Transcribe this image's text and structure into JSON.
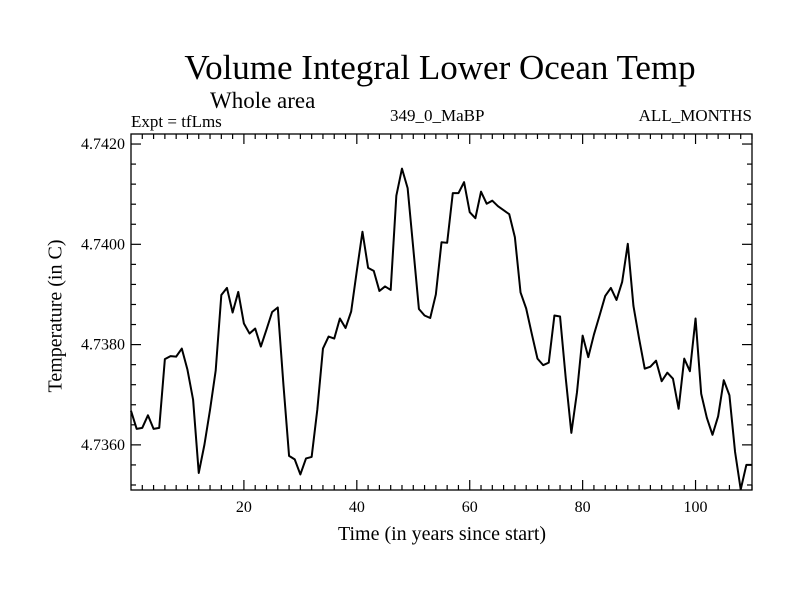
{
  "chart_data": {
    "type": "line",
    "title": "Volume Integral Lower Ocean Temp",
    "subtitle": "Whole area",
    "expt_label": "Expt = tfLms",
    "period_label": "349_0_MaBP",
    "months_label": "ALL_MONTHS",
    "xlabel": "Time (in years since start)",
    "ylabel": "Temperature (in C)",
    "xlim": [
      0,
      110
    ],
    "ylim": [
      4.7351,
      4.7422
    ],
    "x_ticks": [
      20,
      40,
      60,
      80,
      100
    ],
    "y_ticks": [
      "4.7360",
      "4.7380",
      "4.7400",
      "4.7420"
    ],
    "grid": false,
    "series": [
      {
        "name": "Volume integral lower ocean temperature",
        "x": [
          0,
          1,
          2,
          3,
          4,
          5,
          6,
          7,
          8,
          9,
          10,
          11,
          12,
          13,
          14,
          15,
          16,
          17,
          18,
          19,
          20,
          21,
          22,
          23,
          24,
          25,
          26,
          27,
          28,
          29,
          30,
          31,
          32,
          33,
          34,
          35,
          36,
          37,
          38,
          39,
          40,
          41,
          42,
          43,
          44,
          45,
          46,
          47,
          48,
          49,
          50,
          51,
          52,
          53,
          54,
          55,
          56,
          57,
          58,
          59,
          60,
          61,
          62,
          63,
          64,
          65,
          66,
          67,
          68,
          69,
          70,
          71,
          72,
          73,
          74,
          75,
          76,
          77,
          78,
          79,
          80,
          81,
          82,
          83,
          84,
          85,
          86,
          87,
          88,
          89,
          90,
          91,
          92,
          93,
          94,
          95,
          96,
          97,
          98,
          99,
          100,
          101,
          102,
          103,
          104,
          105,
          106,
          107,
          108,
          109,
          110
        ],
        "values": [
          4.73668,
          4.73632,
          4.73634,
          4.73659,
          4.73632,
          4.73634,
          4.73771,
          4.73777,
          4.73776,
          4.73792,
          4.7375,
          4.7369,
          4.73544,
          4.736,
          4.7367,
          4.73748,
          4.73899,
          4.73913,
          4.73864,
          4.73905,
          4.73842,
          4.73822,
          4.73832,
          4.73796,
          4.7383,
          4.73865,
          4.73874,
          4.7372,
          4.73578,
          4.73571,
          4.73541,
          4.73573,
          4.73576,
          4.7367,
          4.73792,
          4.73816,
          4.73812,
          4.73852,
          4.73833,
          4.73866,
          4.73947,
          4.74025,
          4.73953,
          4.73947,
          4.73907,
          4.73916,
          4.73909,
          4.74097,
          4.74151,
          4.74112,
          4.73992,
          4.73871,
          4.73858,
          4.73853,
          4.739,
          4.74004,
          4.74003,
          4.74102,
          4.74102,
          4.74124,
          4.74064,
          4.74052,
          4.74105,
          4.74081,
          4.74087,
          4.74076,
          4.74068,
          4.7406,
          4.74014,
          4.73904,
          4.73872,
          4.73821,
          4.73772,
          4.73759,
          4.73764,
          4.73858,
          4.73856,
          4.73734,
          4.73624,
          4.73705,
          4.73818,
          4.73775,
          4.7382,
          4.73858,
          4.73897,
          4.73913,
          4.73889,
          4.73925,
          4.74001,
          4.73877,
          4.73812,
          4.73752,
          4.73756,
          4.73768,
          4.73727,
          4.73744,
          4.73732,
          4.73672,
          4.73772,
          4.73747,
          4.73852,
          4.73702,
          4.73654,
          4.7362,
          4.73657,
          4.73729,
          4.73699,
          4.73586,
          4.73511,
          4.7356,
          4.7356
        ]
      }
    ]
  }
}
